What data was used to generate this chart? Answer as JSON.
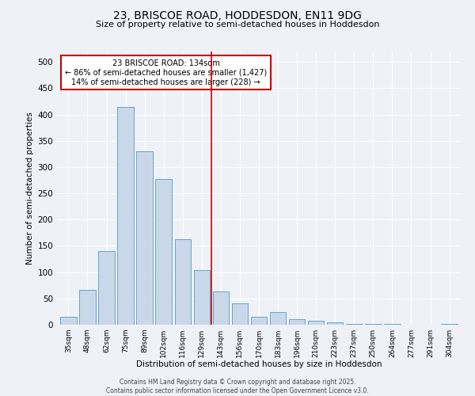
{
  "title": "23, BRISCOE ROAD, HODDESDON, EN11 9DG",
  "subtitle": "Size of property relative to semi-detached houses in Hoddesdon",
  "xlabel": "Distribution of semi-detached houses by size in Hoddesdon",
  "ylabel": "Number of semi-detached properties",
  "bar_color": "#c8d8e8",
  "bar_edge_color": "#5599cc",
  "background_color": "#eef2f7",
  "categories": [
    "35sqm",
    "48sqm",
    "62sqm",
    "75sqm",
    "89sqm",
    "102sqm",
    "116sqm",
    "129sqm",
    "143sqm",
    "156sqm",
    "170sqm",
    "183sqm",
    "196sqm",
    "210sqm",
    "223sqm",
    "237sqm",
    "250sqm",
    "264sqm",
    "277sqm",
    "291sqm",
    "304sqm"
  ],
  "values": [
    15,
    67,
    140,
    415,
    330,
    277,
    163,
    104,
    64,
    41,
    15,
    24,
    11,
    8,
    4,
    2,
    1,
    1,
    0,
    0,
    2
  ],
  "vline_color": "#cc0000",
  "vline_pos": 7.5,
  "annotation_title": "23 BRISCOE ROAD: 134sqm",
  "annotation_line1": "← 86% of semi-detached houses are smaller (1,427)",
  "annotation_line2": "14% of semi-detached houses are larger (228) →",
  "annotation_box_color": "#cc0000",
  "annotation_fill_color": "#ffffff",
  "ylim": [
    0,
    520
  ],
  "yticks": [
    0,
    50,
    100,
    150,
    200,
    250,
    300,
    350,
    400,
    450,
    500
  ],
  "footer_line1": "Contains HM Land Registry data © Crown copyright and database right 2025.",
  "footer_line2": "Contains public sector information licensed under the Open Government Licence v3.0."
}
